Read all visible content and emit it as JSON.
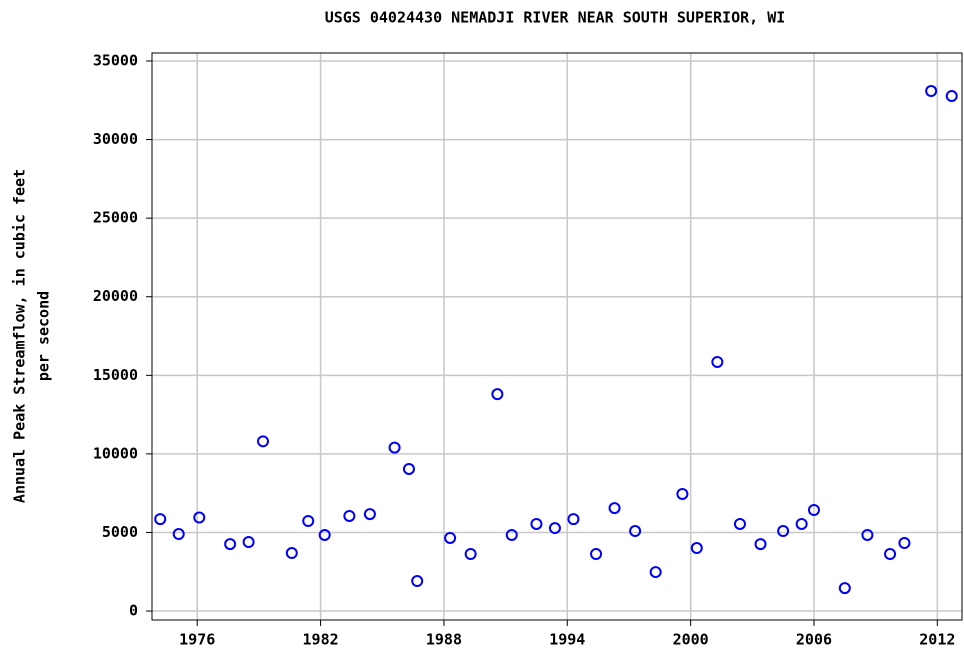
{
  "chart_data": {
    "type": "scatter",
    "title": "USGS 04024430 NEMADJI RIVER NEAR SOUTH SUPERIOR, WI",
    "ylabel": [
      "Annual Peak Streamflow, in cubic feet",
      "per second"
    ],
    "x": [
      1974.2,
      1975.1,
      1976.1,
      1977.6,
      1978.5,
      1979.2,
      1980.6,
      1981.4,
      1982.2,
      1983.4,
      1984.4,
      1985.6,
      1986.3,
      1986.7,
      1988.3,
      1989.3,
      1990.6,
      1991.3,
      1992.5,
      1993.4,
      1994.3,
      1995.4,
      1996.3,
      1997.3,
      1998.3,
      1999.6,
      2000.3,
      2001.3,
      2002.4,
      2003.4,
      2004.5,
      2005.4,
      2006.0,
      2007.5,
      2008.6,
      2009.7,
      2010.4,
      2011.7,
      2012.7
    ],
    "values": [
      5850,
      4900,
      5950,
      4260,
      4390,
      10800,
      3690,
      5730,
      4840,
      6050,
      6170,
      10400,
      9040,
      1910,
      4650,
      3630,
      13800,
      4840,
      5540,
      5280,
      5850,
      3630,
      6550,
      5090,
      2480,
      7450,
      4010,
      15850,
      5540,
      4260,
      5090,
      5540,
      6430,
      1460,
      4840,
      3630,
      4330,
      33090,
      32770
    ],
    "color": "#0000ff",
    "xlim": [
      1973.8,
      2013.2
    ],
    "xticks": [
      1976,
      1982,
      1988,
      1994,
      2000,
      2006,
      2012
    ],
    "ylim": [
      -570,
      35510
    ],
    "yticks": [
      0,
      5000,
      10000,
      15000,
      20000,
      25000,
      30000,
      35000
    ],
    "grid": true
  }
}
